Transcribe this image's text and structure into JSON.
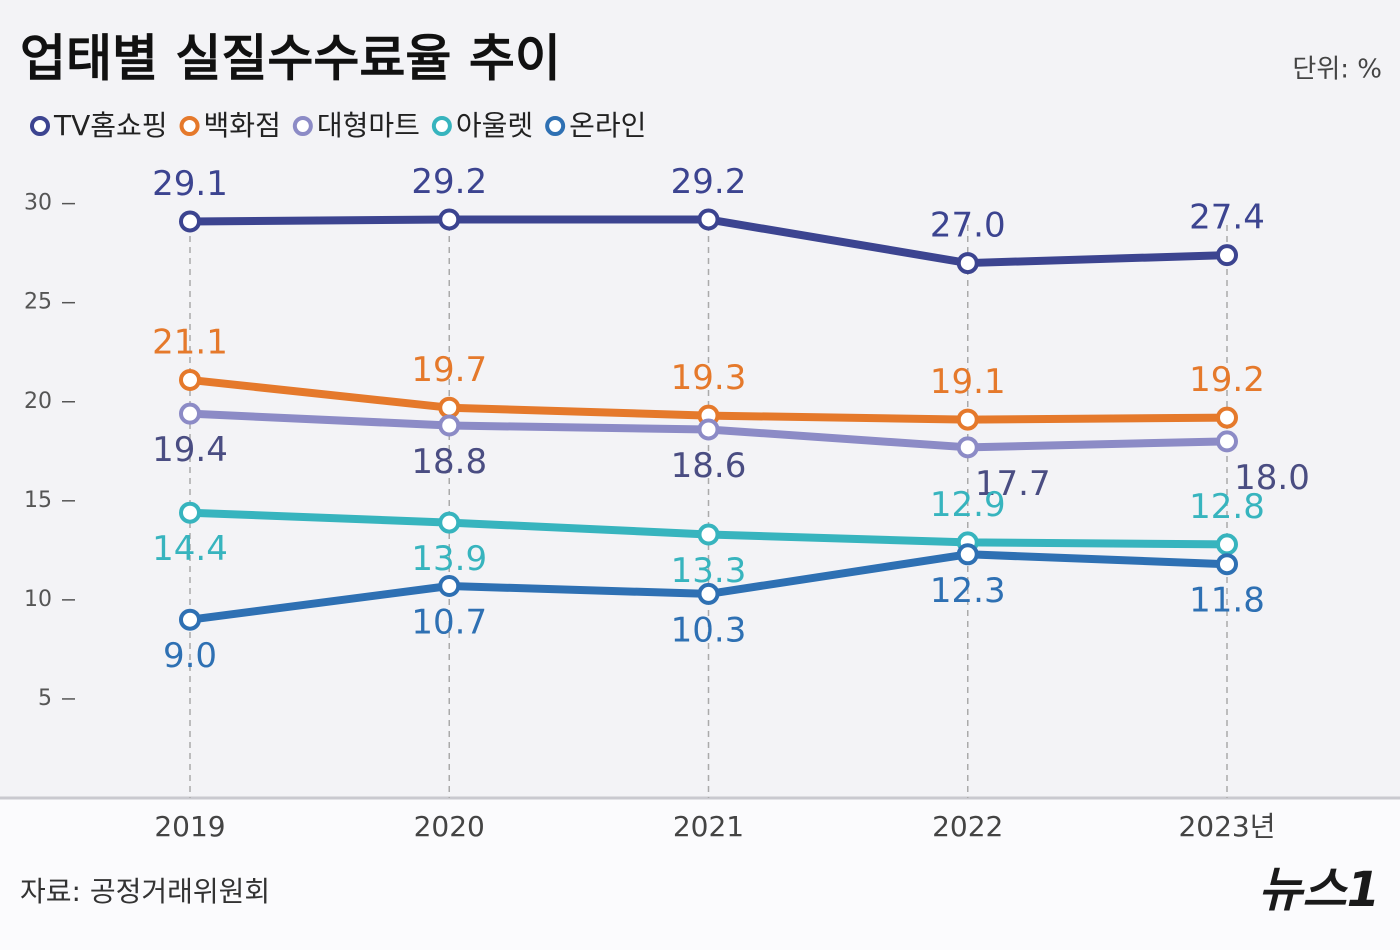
{
  "chart_data": {
    "type": "line",
    "title": "업태별 실질수수료율 추이",
    "unit": "단위: %",
    "source": "자료: 공정거래위원회",
    "logo": "뉴스1",
    "categories": [
      "2019",
      "2020",
      "2021",
      "2022",
      "2023년"
    ],
    "series": [
      {
        "name": "TV홈쇼핑",
        "color": "#3c4490",
        "values": [
          29.1,
          29.2,
          29.2,
          27.0,
          27.4
        ],
        "value_labels": [
          "29.1",
          "29.2",
          "29.2",
          "27.0",
          "27.4"
        ]
      },
      {
        "name": "백화점",
        "color": "#e5792b",
        "values": [
          21.1,
          19.7,
          19.3,
          19.1,
          19.2
        ],
        "value_labels": [
          "21.1",
          "19.7",
          "19.3",
          "19.1",
          "19.2"
        ]
      },
      {
        "name": "대형마트",
        "color": "#8c8bc6",
        "values": [
          19.4,
          18.8,
          18.6,
          17.7,
          18.0
        ],
        "value_labels": [
          "19.4",
          "18.8",
          "18.6",
          "17.7",
          "18.0"
        ]
      },
      {
        "name": "아울렛",
        "color": "#37b4be",
        "values": [
          14.4,
          13.9,
          13.3,
          12.9,
          12.8
        ],
        "value_labels": [
          "14.4",
          "13.9",
          "13.3",
          "12.9",
          "12.8"
        ]
      },
      {
        "name": "온라인",
        "color": "#2e70b3",
        "values": [
          9.0,
          10.7,
          10.3,
          12.3,
          11.8
        ],
        "value_labels": [
          "9.0",
          "10.7",
          "10.3",
          "12.3",
          "11.8"
        ]
      }
    ],
    "ylim": [
      0,
      32
    ],
    "yticks": [
      5,
      10,
      15,
      20,
      25,
      30
    ],
    "grid": true
  }
}
